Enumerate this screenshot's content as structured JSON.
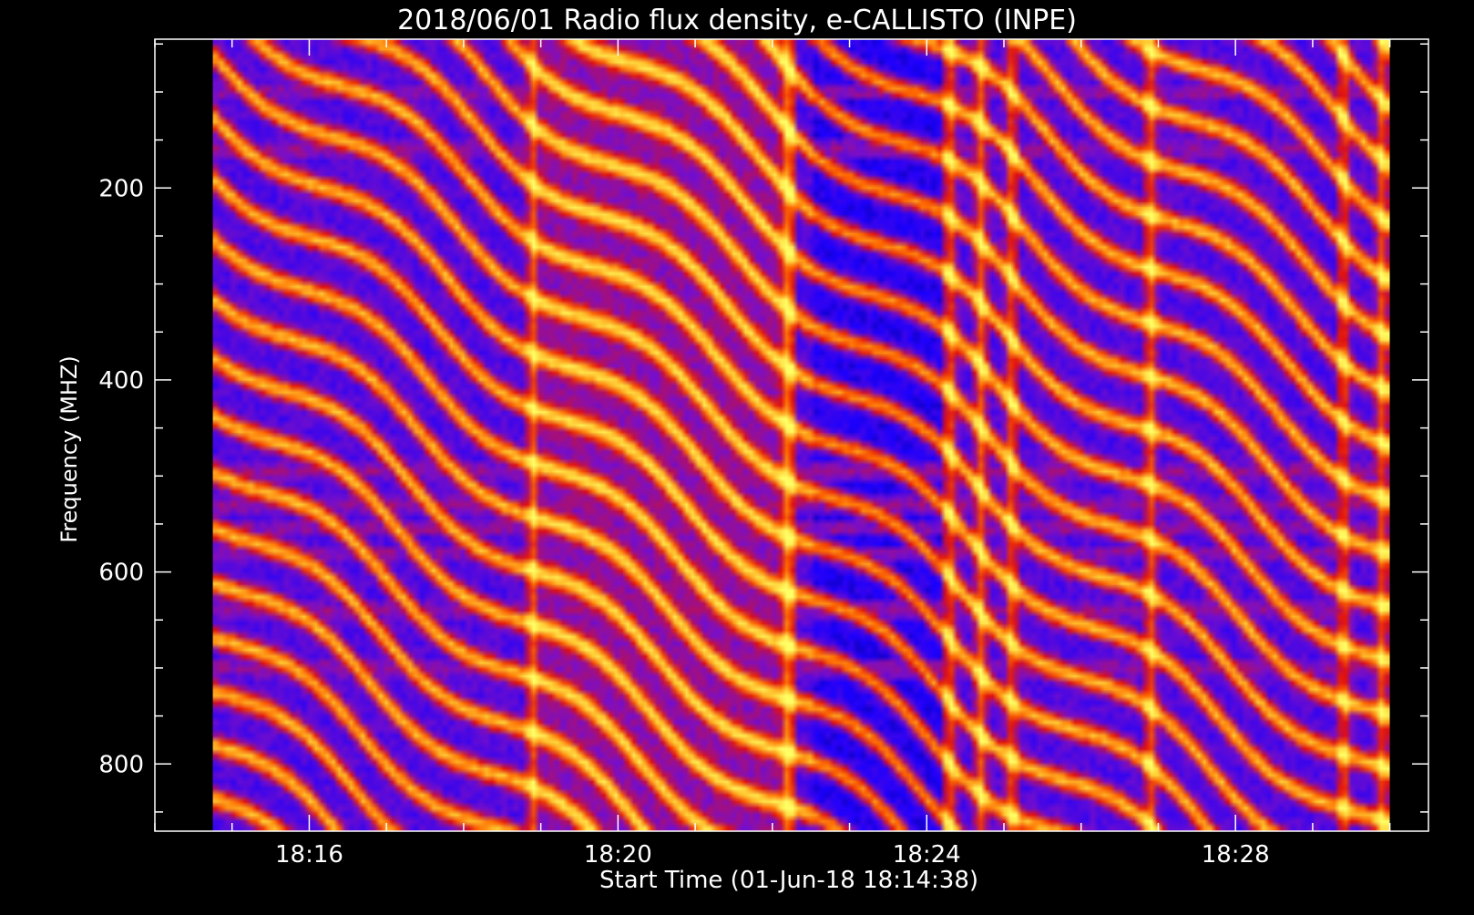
{
  "chart_data": {
    "type": "heatmap",
    "title": "2018/06/01  Radio flux density, e-CALLISTO (INPE)",
    "xlabel": "Start Time (01-Jun-18 18:14:38)",
    "ylabel": "Frequency (MHZ)",
    "x_tick_labels": [
      "18:16",
      "18:20",
      "18:24",
      "18:28"
    ],
    "y_tick_labels": [
      "200",
      "400",
      "600",
      "800"
    ],
    "x_ticks_minutes": [
      16,
      20,
      24,
      28
    ],
    "y_ticks_mhz": [
      200,
      400,
      600,
      800
    ],
    "ylim": [
      45,
      870
    ],
    "xlim_minutes": [
      14.0,
      30.5
    ],
    "data_extent_minutes": [
      14.75,
      30.0
    ],
    "data_extent_mhz": [
      45,
      870
    ],
    "y_inverted": true,
    "colormap": [
      "#000000",
      "#1a00ff",
      "#7a0fc8",
      "#e0100f",
      "#ff6a00",
      "#ffcc33",
      "#ffff66"
    ],
    "features": {
      "drifting_bands": "diagonal emission lanes drifting to higher frequency with time",
      "broadband_bursts_minutes": [
        18.9,
        22.2,
        24.3,
        24.7,
        25.1,
        26.9,
        29.4,
        29.9
      ],
      "horizontal_rfi_mhz": [
        100,
        160,
        495,
        530,
        555,
        580,
        640,
        700
      ]
    }
  }
}
